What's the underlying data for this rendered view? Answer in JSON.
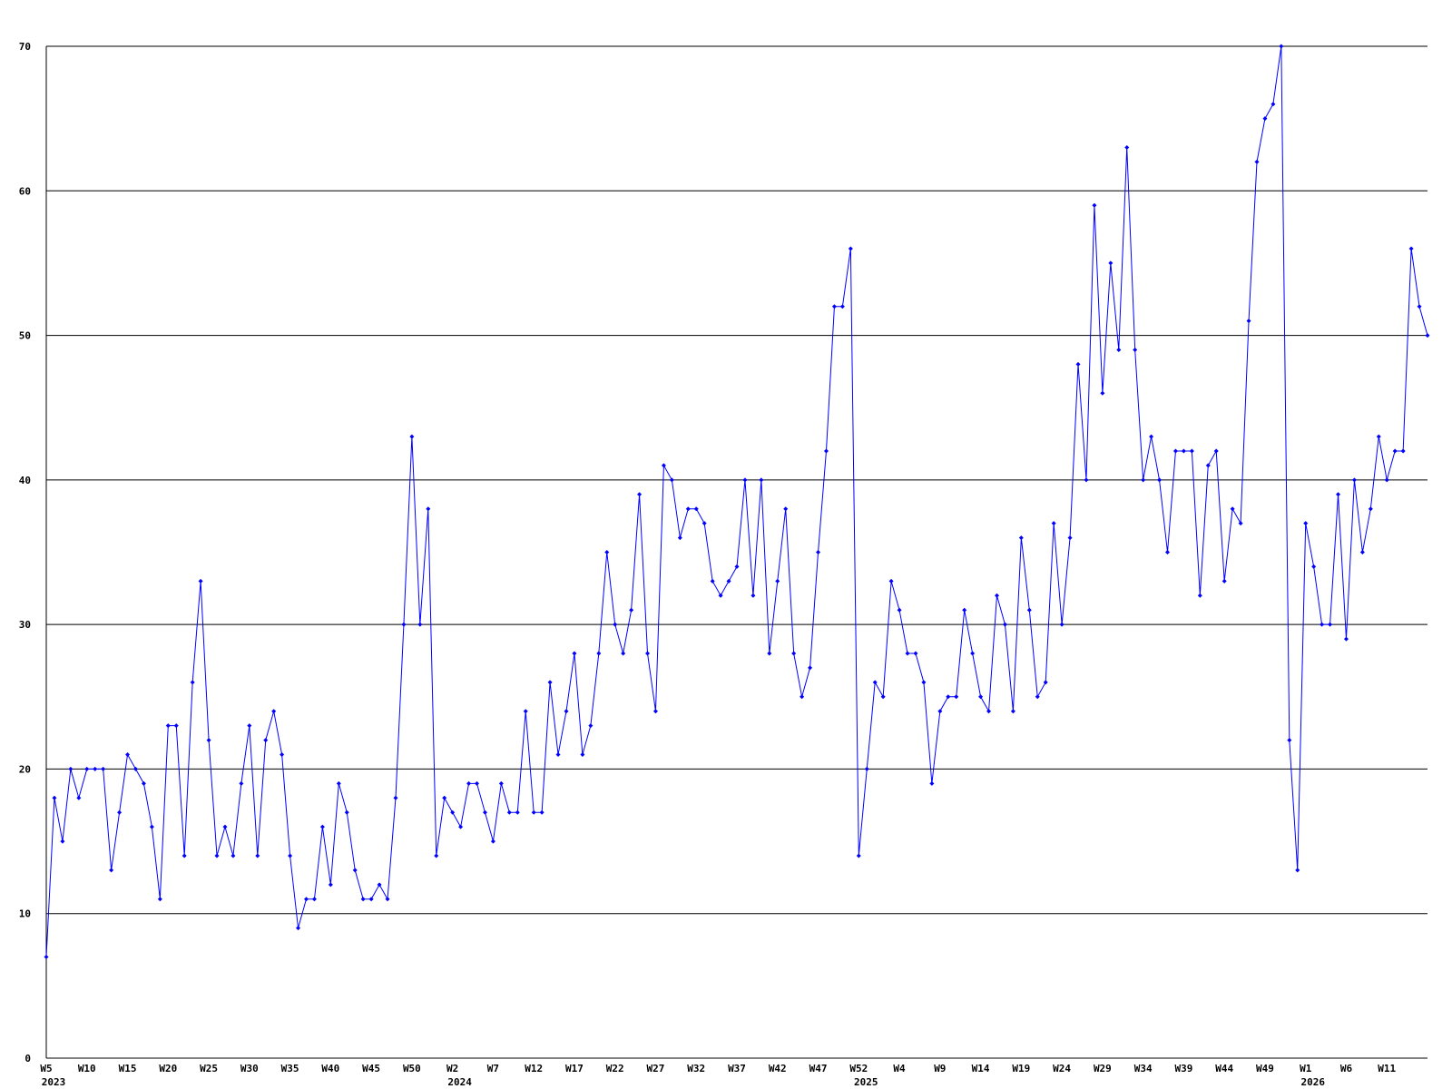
{
  "chart_data": {
    "type": "line",
    "categories": [
      "W5",
      null,
      null,
      null,
      null,
      "W10",
      null,
      null,
      null,
      null,
      "W15",
      null,
      null,
      null,
      null,
      "W20",
      null,
      null,
      null,
      null,
      "W25",
      null,
      null,
      null,
      null,
      "W30",
      null,
      null,
      null,
      null,
      "W35",
      null,
      null,
      null,
      null,
      "W40",
      null,
      null,
      null,
      null,
      "W45",
      null,
      null,
      null,
      null,
      "W50",
      null,
      null,
      null,
      null,
      "W2",
      null,
      null,
      null,
      null,
      "W7",
      null,
      null,
      null,
      null,
      "W12",
      null,
      null,
      null,
      null,
      "W17",
      null,
      null,
      null,
      null,
      "W22",
      null,
      null,
      null,
      null,
      "W27",
      null,
      null,
      null,
      null,
      "W32",
      null,
      null,
      null,
      null,
      "W37",
      null,
      null,
      null,
      null,
      "W42",
      null,
      null,
      null,
      null,
      "W47",
      null,
      null,
      null,
      null,
      "W52",
      null,
      null,
      null,
      null,
      "W4",
      null,
      null,
      null,
      null,
      "W9",
      null,
      null,
      null,
      null,
      "W14",
      null,
      null,
      null,
      null,
      "W19",
      null,
      null,
      null,
      null,
      "W24",
      null,
      null,
      null,
      null,
      "W29",
      null,
      null,
      null,
      null,
      "W34",
      null,
      null,
      null,
      null,
      "W39",
      null,
      null,
      null,
      null,
      "W44",
      null,
      null,
      null,
      null,
      "W49",
      null,
      null,
      null,
      null,
      "W1",
      null,
      null,
      null,
      null,
      "W6",
      null,
      null,
      null,
      null,
      "W11",
      null,
      null,
      null,
      null,
      null
    ],
    "year_labels": [
      "2023",
      null,
      null,
      null,
      null,
      null,
      null,
      null,
      null,
      null,
      null,
      null,
      null,
      null,
      null,
      null,
      null,
      null,
      null,
      null,
      null,
      null,
      null,
      null,
      null,
      null,
      null,
      null,
      null,
      null,
      null,
      null,
      null,
      null,
      null,
      null,
      null,
      null,
      null,
      null,
      null,
      null,
      null,
      null,
      null,
      null,
      null,
      null,
      null,
      null,
      "2024",
      null,
      null,
      null,
      null,
      null,
      null,
      null,
      null,
      null,
      null,
      null,
      null,
      null,
      null,
      null,
      null,
      null,
      null,
      null,
      null,
      null,
      null,
      null,
      null,
      null,
      null,
      null,
      null,
      null,
      null,
      null,
      null,
      null,
      null,
      null,
      null,
      null,
      null,
      null,
      null,
      null,
      null,
      null,
      null,
      null,
      null,
      null,
      null,
      null,
      "2025",
      null,
      null,
      null,
      null,
      null,
      null,
      null,
      null,
      null,
      null,
      null,
      null,
      null,
      null,
      null,
      null,
      null,
      null,
      null,
      null,
      null,
      null,
      null,
      null,
      null,
      null,
      null,
      null,
      null,
      null,
      null,
      null,
      null,
      null,
      null,
      null,
      null,
      null,
      null,
      null,
      null,
      null,
      null,
      null,
      null,
      null,
      null,
      null,
      null,
      null,
      null,
      null,
      null,
      null,
      "2026",
      null,
      null,
      null,
      null,
      null,
      null,
      null,
      null,
      null,
      null,
      null,
      null,
      null,
      null,
      null
    ],
    "values": [
      7,
      18,
      15,
      20,
      18,
      20,
      20,
      20,
      13,
      17,
      21,
      20,
      19,
      16,
      11,
      23,
      23,
      14,
      26,
      33,
      22,
      14,
      16,
      14,
      19,
      23,
      14,
      22,
      24,
      21,
      14,
      9,
      11,
      11,
      16,
      12,
      19,
      17,
      13,
      11,
      11,
      12,
      11,
      18,
      30,
      43,
      30,
      38,
      14,
      18,
      17,
      16,
      19,
      19,
      17,
      15,
      19,
      17,
      17,
      24,
      17,
      17,
      26,
      21,
      24,
      28,
      21,
      23,
      28,
      35,
      30,
      28,
      31,
      39,
      28,
      24,
      41,
      40,
      36,
      38,
      38,
      37,
      33,
      32,
      33,
      34,
      40,
      32,
      40,
      28,
      33,
      38,
      28,
      25,
      27,
      35,
      42,
      52,
      52,
      56,
      14,
      20,
      26,
      25,
      33,
      31,
      28,
      28,
      26,
      19,
      24,
      25,
      25,
      31,
      28,
      25,
      24,
      32,
      30,
      24,
      36,
      31,
      25,
      26,
      37,
      30,
      36,
      48,
      40,
      59,
      46,
      55,
      49,
      63,
      49,
      40,
      43,
      40,
      35,
      42,
      42,
      42,
      32,
      41,
      42,
      33,
      38,
      37,
      51,
      62,
      65,
      66,
      70,
      22,
      13,
      37,
      34,
      30,
      30,
      39,
      29,
      40,
      35,
      38,
      43,
      40,
      42,
      42,
      56,
      52,
      50
    ],
    "color": "#0000ff",
    "ylim": [
      0,
      70
    ],
    "yticks": [
      0,
      10,
      20,
      30,
      40,
      50,
      60,
      70
    ],
    "grid": true
  }
}
